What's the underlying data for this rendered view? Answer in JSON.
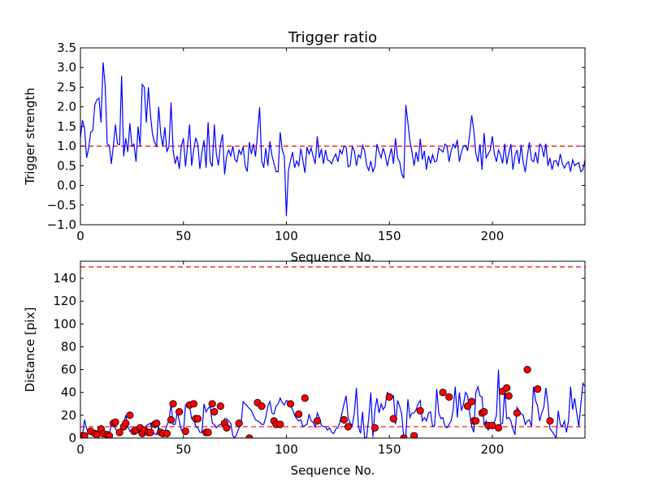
{
  "chart_data": [
    {
      "type": "line",
      "title": "Trigger ratio",
      "xlabel": "Sequence No.",
      "ylabel": "Trigger strength",
      "xlim": [
        0,
        245
      ],
      "ylim": [
        -1.0,
        3.5
      ],
      "xticks": [
        0,
        50,
        100,
        150,
        200
      ],
      "yticks": [
        -1.0,
        -0.5,
        0.0,
        0.5,
        1.0,
        1.5,
        2.0,
        2.5,
        3.0,
        3.5
      ],
      "xtick_labels": [
        "0",
        "50",
        "100",
        "150",
        "200"
      ],
      "ytick_labels": [
        "−1.0",
        "−0.5",
        "0.0",
        "0.5",
        "1.0",
        "1.5",
        "2.0",
        "2.5",
        "3.0",
        "3.5"
      ],
      "threshold": 1.0,
      "series_color": "#0000ff",
      "threshold_color": "#ff0000",
      "y": [
        1.2,
        1.66,
        1.45,
        0.7,
        0.95,
        1.35,
        1.4,
        2.05,
        2.18,
        2.22,
        1.6,
        3.13,
        2.55,
        1.05,
        1.02,
        0.55,
        1.02,
        1.55,
        1.06,
        1.03,
        2.79,
        0.74,
        1.2,
        0.85,
        1.58,
        1.0,
        1.05,
        0.6,
        1.5,
        1.0,
        2.57,
        2.5,
        1.6,
        2.5,
        1.8,
        1.3,
        1.1,
        1.0,
        2.0,
        1.3,
        1.0,
        1.48,
        0.85,
        1.0,
        2.11,
        0.9,
        0.55,
        0.75,
        0.42,
        1.0,
        1.2,
        0.48,
        1.0,
        1.55,
        0.5,
        0.9,
        1.21,
        1.05,
        0.42,
        0.85,
        1.15,
        0.45,
        1.61,
        0.6,
        0.48,
        1.55,
        0.8,
        0.51,
        1.04,
        1.3,
        0.28,
        0.75,
        0.9,
        0.75,
        1.0,
        0.66,
        0.6,
        0.9,
        0.79,
        0.99,
        0.5,
        0.35,
        1.1,
        0.8,
        1.06,
        0.73,
        1.33,
        1.99,
        0.62,
        0.45,
        0.95,
        0.5,
        1.12,
        0.76,
        0.55,
        0.35,
        0.35,
        1.35,
        0.9,
        0.74,
        -0.78,
        0.38,
        0.63,
        0.85,
        0.45,
        0.62,
        0.5,
        0.94,
        0.64,
        0.32,
        0.98,
        0.8,
        0.95,
        0.74,
        0.55,
        1.25,
        0.7,
        0.93,
        0.55,
        0.9,
        0.65,
        0.62,
        0.55,
        0.7,
        0.8,
        0.6,
        0.9,
        0.8,
        1.0,
        0.98,
        0.47,
        0.51,
        0.98,
        0.88,
        0.5,
        0.78,
        0.7,
        1.02,
        0.88,
        0.51,
        0.38,
        0.62,
        0.35,
        0.48,
        1.05,
        0.85,
        0.7,
        0.95,
        0.78,
        0.49,
        0.73,
        0.95,
        0.55,
        1.2,
        0.7,
        0.6,
        0.3,
        0.18,
        2.05,
        1.6,
        1.12,
        0.85,
        0.5,
        0.85,
        0.6,
        1.19,
        0.66,
        0.88,
        0.4,
        0.75,
        0.56,
        0.78,
        0.6,
        0.62,
        0.95,
        0.9,
        0.85,
        1.05,
        1.0,
        0.6,
        0.88,
        1.05,
        0.96,
        1.16,
        0.6,
        0.85,
        1.0,
        1.02,
        0.88,
        1.3,
        1.78,
        1.4,
        0.82,
        0.6,
        1.05,
        0.4,
        1.33,
        0.7,
        0.8,
        0.9,
        1.25,
        0.8,
        0.6,
        0.9,
        0.78,
        0.56,
        1.06,
        0.54,
        0.82,
        1.05,
        0.4,
        0.75,
        0.9,
        0.55,
        1.03,
        0.58,
        0.34,
        0.75,
        1.1,
        0.65,
        0.6,
        0.85,
        0.56,
        1.05,
        1.0,
        0.72,
        1.06,
        0.5,
        0.7,
        0.4,
        0.62,
        0.63,
        0.5,
        0.8,
        0.55,
        0.44,
        0.55,
        0.6,
        0.35,
        0.65,
        0.5,
        0.55,
        0.58,
        0.35,
        0.4,
        0.65,
        1.0
      ]
    },
    {
      "type": "line",
      "title": "",
      "xlabel": "Sequence No.",
      "ylabel": "Distance [pix]",
      "xlim": [
        0,
        245
      ],
      "ylim": [
        0,
        155
      ],
      "xticks": [
        0,
        50,
        100,
        150,
        200
      ],
      "yticks": [
        0,
        20,
        40,
        60,
        80,
        100,
        120,
        140
      ],
      "xtick_labels": [
        "0",
        "50",
        "100",
        "150",
        "200"
      ],
      "ytick_labels": [
        "0",
        "20",
        "40",
        "60",
        "80",
        "100",
        "120",
        "140"
      ],
      "thresholds": [
        10,
        150
      ],
      "series_color": "#0000ff",
      "threshold_color": "#ff0000",
      "marker_color": "#ff0000",
      "y": [
        2,
        2,
        16,
        8,
        6,
        7,
        4,
        6,
        3,
        5,
        8,
        4,
        3,
        5,
        2,
        13,
        14,
        8,
        5,
        7,
        10,
        13,
        20,
        10,
        6,
        7,
        9,
        4,
        8,
        4,
        7,
        5,
        11,
        12,
        13,
        5,
        4,
        3,
        10,
        3,
        5,
        6,
        11,
        16,
        30,
        12,
        12,
        23,
        15,
        7,
        4,
        29,
        30,
        28,
        17,
        17,
        10,
        9,
        5,
        5,
        30,
        23,
        26,
        28,
        13,
        12,
        9,
        11,
        12,
        12,
        17,
        17,
        15,
        13,
        2,
        0,
        4,
        9,
        12,
        32,
        30,
        28,
        26,
        24,
        20,
        16,
        15,
        14,
        12,
        12,
        18,
        28,
        32,
        22,
        21,
        28,
        30,
        35,
        31,
        29,
        33,
        32,
        29,
        25,
        20,
        17,
        15,
        16,
        10,
        11,
        12,
        21,
        15,
        14,
        9,
        22,
        18,
        11,
        10,
        10,
        7,
        9,
        5,
        4,
        8,
        9,
        14,
        22,
        30,
        37,
        18,
        13,
        11,
        22,
        44,
        10,
        4,
        23,
        0,
        1,
        18,
        40,
        1,
        25,
        35,
        22,
        30,
        25,
        28,
        40,
        38,
        36,
        37,
        12,
        33,
        28,
        21,
        0,
        2,
        34,
        18,
        22,
        22,
        25,
        30,
        33,
        15,
        18,
        15,
        22,
        23,
        10,
        11,
        43,
        22,
        17,
        18,
        10,
        9,
        12,
        15,
        25,
        45,
        18,
        40,
        24,
        30,
        40,
        37,
        22,
        10,
        5,
        40,
        45,
        37,
        36,
        12,
        15,
        7,
        10,
        12,
        14,
        20,
        60,
        12,
        13,
        42,
        17,
        18,
        15,
        8,
        3,
        27,
        24,
        21,
        20,
        12,
        15,
        16,
        10,
        45,
        33,
        28,
        15,
        22,
        27,
        44,
        30,
        8,
        6,
        3,
        0,
        24,
        12,
        10,
        15,
        5,
        15,
        45,
        25,
        35,
        22,
        10,
        30,
        48,
        45,
        40
      ],
      "markers": [
        {
          "x": 1,
          "y": 2
        },
        {
          "x": 2,
          "y": 2
        },
        {
          "x": 5,
          "y": 6
        },
        {
          "x": 7,
          "y": 4
        },
        {
          "x": 8,
          "y": 3
        },
        {
          "x": 10,
          "y": 8
        },
        {
          "x": 11,
          "y": 4
        },
        {
          "x": 13,
          "y": 3
        },
        {
          "x": 14,
          "y": 2
        },
        {
          "x": 16,
          "y": 13
        },
        {
          "x": 17,
          "y": 14
        },
        {
          "x": 19,
          "y": 5
        },
        {
          "x": 21,
          "y": 10
        },
        {
          "x": 22,
          "y": 13
        },
        {
          "x": 24,
          "y": 20
        },
        {
          "x": 26,
          "y": 6
        },
        {
          "x": 27,
          "y": 7
        },
        {
          "x": 29,
          "y": 9
        },
        {
          "x": 30,
          "y": 4
        },
        {
          "x": 31,
          "y": 7
        },
        {
          "x": 33,
          "y": 5
        },
        {
          "x": 34,
          "y": 5
        },
        {
          "x": 36,
          "y": 12
        },
        {
          "x": 37,
          "y": 13
        },
        {
          "x": 39,
          "y": 5
        },
        {
          "x": 40,
          "y": 4
        },
        {
          "x": 42,
          "y": 4
        },
        {
          "x": 44,
          "y": 16
        },
        {
          "x": 45,
          "y": 30
        },
        {
          "x": 48,
          "y": 23
        },
        {
          "x": 51,
          "y": 6
        },
        {
          "x": 53,
          "y": 29
        },
        {
          "x": 55,
          "y": 30
        },
        {
          "x": 56,
          "y": 17
        },
        {
          "x": 57,
          "y": 17
        },
        {
          "x": 61,
          "y": 5
        },
        {
          "x": 62,
          "y": 5
        },
        {
          "x": 64,
          "y": 30
        },
        {
          "x": 65,
          "y": 23
        },
        {
          "x": 68,
          "y": 28
        },
        {
          "x": 70,
          "y": 13
        },
        {
          "x": 71,
          "y": 9
        },
        {
          "x": 77,
          "y": 13
        },
        {
          "x": 82,
          "y": 0
        },
        {
          "x": 86,
          "y": 31
        },
        {
          "x": 88,
          "y": 28
        },
        {
          "x": 94,
          "y": 15
        },
        {
          "x": 95,
          "y": 12
        },
        {
          "x": 97,
          "y": 12
        },
        {
          "x": 102,
          "y": 30
        },
        {
          "x": 106,
          "y": 21
        },
        {
          "x": 109,
          "y": 35
        },
        {
          "x": 115,
          "y": 15
        },
        {
          "x": 128,
          "y": 16
        },
        {
          "x": 130,
          "y": 10
        },
        {
          "x": 143,
          "y": 9
        },
        {
          "x": 150,
          "y": 36
        },
        {
          "x": 152,
          "y": 17
        },
        {
          "x": 157,
          "y": 0
        },
        {
          "x": 162,
          "y": 2
        },
        {
          "x": 165,
          "y": 24
        },
        {
          "x": 176,
          "y": 40
        },
        {
          "x": 179,
          "y": 36
        },
        {
          "x": 188,
          "y": 28
        },
        {
          "x": 190,
          "y": 32
        },
        {
          "x": 191,
          "y": 15
        },
        {
          "x": 192,
          "y": 15
        },
        {
          "x": 195,
          "y": 22
        },
        {
          "x": 196,
          "y": 23
        },
        {
          "x": 198,
          "y": 11
        },
        {
          "x": 200,
          "y": 11
        },
        {
          "x": 203,
          "y": 9
        },
        {
          "x": 205,
          "y": 41
        },
        {
          "x": 207,
          "y": 44
        },
        {
          "x": 208,
          "y": 37
        },
        {
          "x": 212,
          "y": 22
        },
        {
          "x": 217,
          "y": 60
        },
        {
          "x": 222,
          "y": 43
        },
        {
          "x": 228,
          "y": 15
        }
      ]
    }
  ]
}
